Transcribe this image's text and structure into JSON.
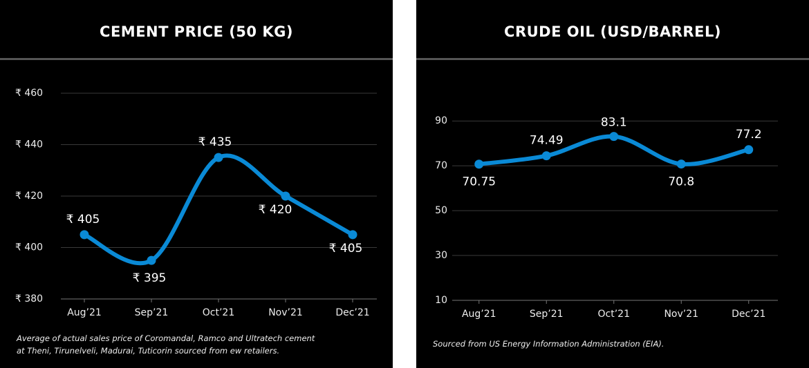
{
  "chart_data": [
    {
      "type": "line",
      "title": "CEMENT PRICE (50 KG)",
      "categories": [
        "Aug’21",
        "Sep’21",
        "Oct’21",
        "Nov’21",
        "Dec’21"
      ],
      "values": [
        405,
        395,
        435,
        420,
        405
      ],
      "value_labels": [
        "₹ 405",
        "₹ 395",
        "₹ 435",
        "₹ 420",
        "₹ 405"
      ],
      "color": "#0a8ad6",
      "ylim": [
        380,
        460
      ],
      "yticks": [
        {
          "value": 380,
          "label": "₹ 380"
        },
        {
          "value": 400,
          "label": "₹ 400"
        },
        {
          "value": 420,
          "label": "₹ 420"
        },
        {
          "value": 440,
          "label": "₹ 440"
        },
        {
          "value": 460,
          "label": "₹ 460"
        }
      ],
      "grid": true,
      "note": [
        "Average of actual sales price of Coromandal, Ramco and Ultratech cement",
        "at Theni, Tirunelveli, Madurai, Tuticorin sourced from ew retailers."
      ]
    },
    {
      "type": "line",
      "title": "CRUDE OIL (USD/BARREL)",
      "categories": [
        "Aug’21",
        "Sep’21",
        "Oct’21",
        "Nov’21",
        "Dec’21"
      ],
      "values": [
        70.75,
        74.49,
        83.1,
        70.8,
        77.2
      ],
      "color": "#0a8ad6",
      "ylim": [
        10,
        95
      ],
      "yticks": [
        10,
        30,
        50,
        70,
        90
      ],
      "grid": true,
      "note": [
        "Sourced from US Energy Information Administration (EIA)."
      ]
    }
  ]
}
